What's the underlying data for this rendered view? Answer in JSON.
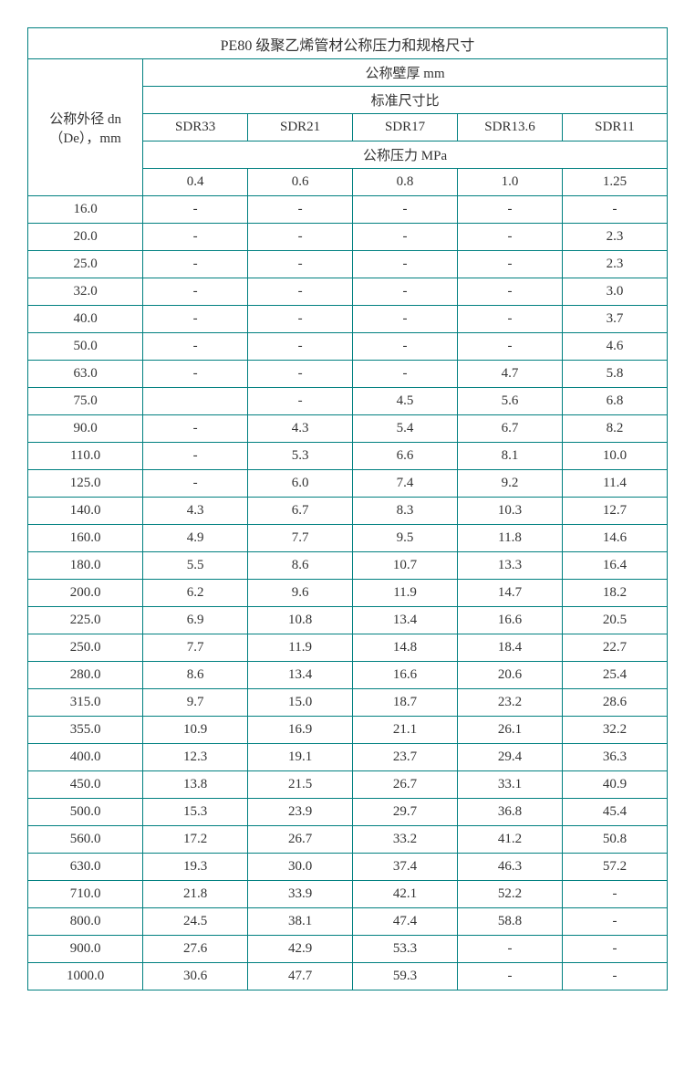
{
  "table": {
    "title": "PE80 级聚乙烯管材公称压力和规格尺寸",
    "row_header_label": "公称外径 dn（De），mm",
    "wall_thickness_label": "公称壁厚 mm",
    "sdr_label": "标准尺寸比",
    "pressure_label": "公称压力 MPa",
    "sdr_columns": [
      "SDR33",
      "SDR21",
      "SDR17",
      "SDR13.6",
      "SDR11"
    ],
    "pressure_columns": [
      "0.4",
      "0.6",
      "0.8",
      "1.0",
      "1.25"
    ],
    "rows": [
      {
        "dn": "16.0",
        "v": [
          "-",
          "-",
          "-",
          "-",
          "-"
        ]
      },
      {
        "dn": "20.0",
        "v": [
          "-",
          "-",
          "-",
          "-",
          "2.3"
        ]
      },
      {
        "dn": "25.0",
        "v": [
          "-",
          "-",
          "-",
          "-",
          "2.3"
        ]
      },
      {
        "dn": "32.0",
        "v": [
          "-",
          "-",
          "-",
          "-",
          "3.0"
        ]
      },
      {
        "dn": "40.0",
        "v": [
          "-",
          "-",
          "-",
          "-",
          "3.7"
        ]
      },
      {
        "dn": "50.0",
        "v": [
          "-",
          "-",
          "-",
          "-",
          "4.6"
        ]
      },
      {
        "dn": "63.0",
        "v": [
          "-",
          "-",
          "-",
          "4.7",
          "5.8"
        ]
      },
      {
        "dn": "75.0",
        "v": [
          "",
          "-",
          "4.5",
          "5.6",
          "6.8"
        ]
      },
      {
        "dn": "90.0",
        "v": [
          "-",
          "4.3",
          "5.4",
          "6.7",
          "8.2"
        ]
      },
      {
        "dn": "110.0",
        "v": [
          "-",
          "5.3",
          "6.6",
          "8.1",
          "10.0"
        ]
      },
      {
        "dn": "125.0",
        "v": [
          "-",
          "6.0",
          "7.4",
          "9.2",
          "11.4"
        ]
      },
      {
        "dn": "140.0",
        "v": [
          "4.3",
          "6.7",
          "8.3",
          "10.3",
          "12.7"
        ]
      },
      {
        "dn": "160.0",
        "v": [
          "4.9",
          "7.7",
          "9.5",
          "11.8",
          "14.6"
        ]
      },
      {
        "dn": "180.0",
        "v": [
          "5.5",
          "8.6",
          "10.7",
          "13.3",
          "16.4"
        ]
      },
      {
        "dn": "200.0",
        "v": [
          "6.2",
          "9.6",
          "11.9",
          "14.7",
          "18.2"
        ]
      },
      {
        "dn": "225.0",
        "v": [
          "6.9",
          "10.8",
          "13.4",
          "16.6",
          "20.5"
        ]
      },
      {
        "dn": "250.0",
        "v": [
          "7.7",
          "11.9",
          "14.8",
          "18.4",
          "22.7"
        ]
      },
      {
        "dn": "280.0",
        "v": [
          "8.6",
          "13.4",
          "16.6",
          "20.6",
          "25.4"
        ]
      },
      {
        "dn": "315.0",
        "v": [
          "9.7",
          "15.0",
          "18.7",
          "23.2",
          "28.6"
        ]
      },
      {
        "dn": "355.0",
        "v": [
          "10.9",
          "16.9",
          "21.1",
          "26.1",
          "32.2"
        ]
      },
      {
        "dn": "400.0",
        "v": [
          "12.3",
          "19.1",
          "23.7",
          "29.4",
          "36.3"
        ]
      },
      {
        "dn": "450.0",
        "v": [
          "13.8",
          "21.5",
          "26.7",
          "33.1",
          "40.9"
        ]
      },
      {
        "dn": "500.0",
        "v": [
          "15.3",
          "23.9",
          "29.7",
          "36.8",
          "45.4"
        ]
      },
      {
        "dn": "560.0",
        "v": [
          "17.2",
          "26.7",
          "33.2",
          "41.2",
          "50.8"
        ]
      },
      {
        "dn": "630.0",
        "v": [
          "19.3",
          "30.0",
          "37.4",
          "46.3",
          "57.2"
        ]
      },
      {
        "dn": "710.0",
        "v": [
          "21.8",
          "33.9",
          "42.1",
          "52.2",
          "-"
        ]
      },
      {
        "dn": "800.0",
        "v": [
          "24.5",
          "38.1",
          "47.4",
          "58.8",
          "-"
        ]
      },
      {
        "dn": "900.0",
        "v": [
          "27.6",
          "42.9",
          "53.3",
          "-",
          "-"
        ]
      },
      {
        "dn": "1000.0",
        "v": [
          "30.6",
          "47.7",
          "59.3",
          "-",
          "-"
        ]
      }
    ],
    "border_color": "#008080",
    "background_color": "#ffffff",
    "text_color": "#333333",
    "col_widths": {
      "dn": "18%",
      "data": "16.4%"
    }
  }
}
